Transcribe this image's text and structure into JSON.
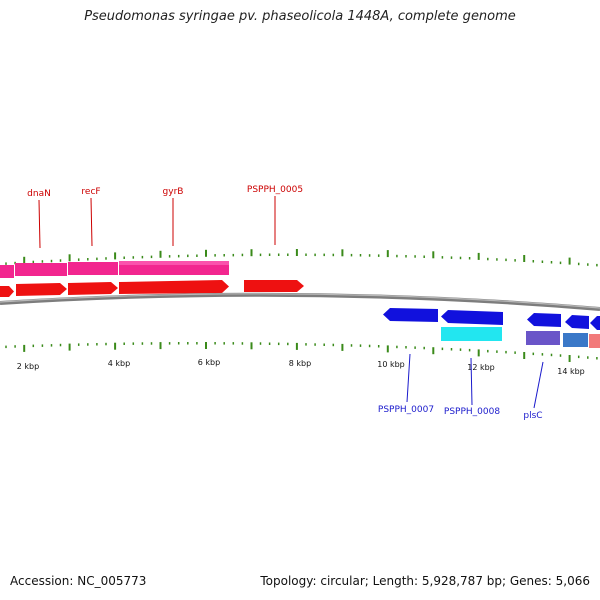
{
  "title": "Pseudomonas syringae pv. phaseolicola 1448A, complete genome",
  "footer": {
    "accession": "Accession: NC_005773",
    "summary": "Topology: circular; Length: 5,928,787 bp; Genes: 5,066"
  },
  "colors": {
    "tick": "#3a8a1a",
    "backbone": "#8a8a8a",
    "forward_cds": "#ee1111",
    "forward_gene": "#f2268f",
    "reverse_cds": "#1111dd",
    "reverse_gene": "#22e6f0",
    "label_forward": "#cc0000",
    "label_reverse": "#1a1acc"
  },
  "scale": {
    "labels": [
      "2 kbp",
      "4 kbp",
      "6 kbp",
      "8 kbp",
      "10 kbp",
      "12 kbp",
      "14 kbp"
    ]
  },
  "genes": [
    {
      "name": "dnaN",
      "strand": "+"
    },
    {
      "name": "recF",
      "strand": "+"
    },
    {
      "name": "gyrB",
      "strand": "+"
    },
    {
      "name": "PSPPH_0005",
      "strand": "+"
    },
    {
      "name": "PSPPH_0007",
      "strand": "-"
    },
    {
      "name": "PSPPH_0008",
      "strand": "-"
    },
    {
      "name": "plsC",
      "strand": "-"
    }
  ]
}
